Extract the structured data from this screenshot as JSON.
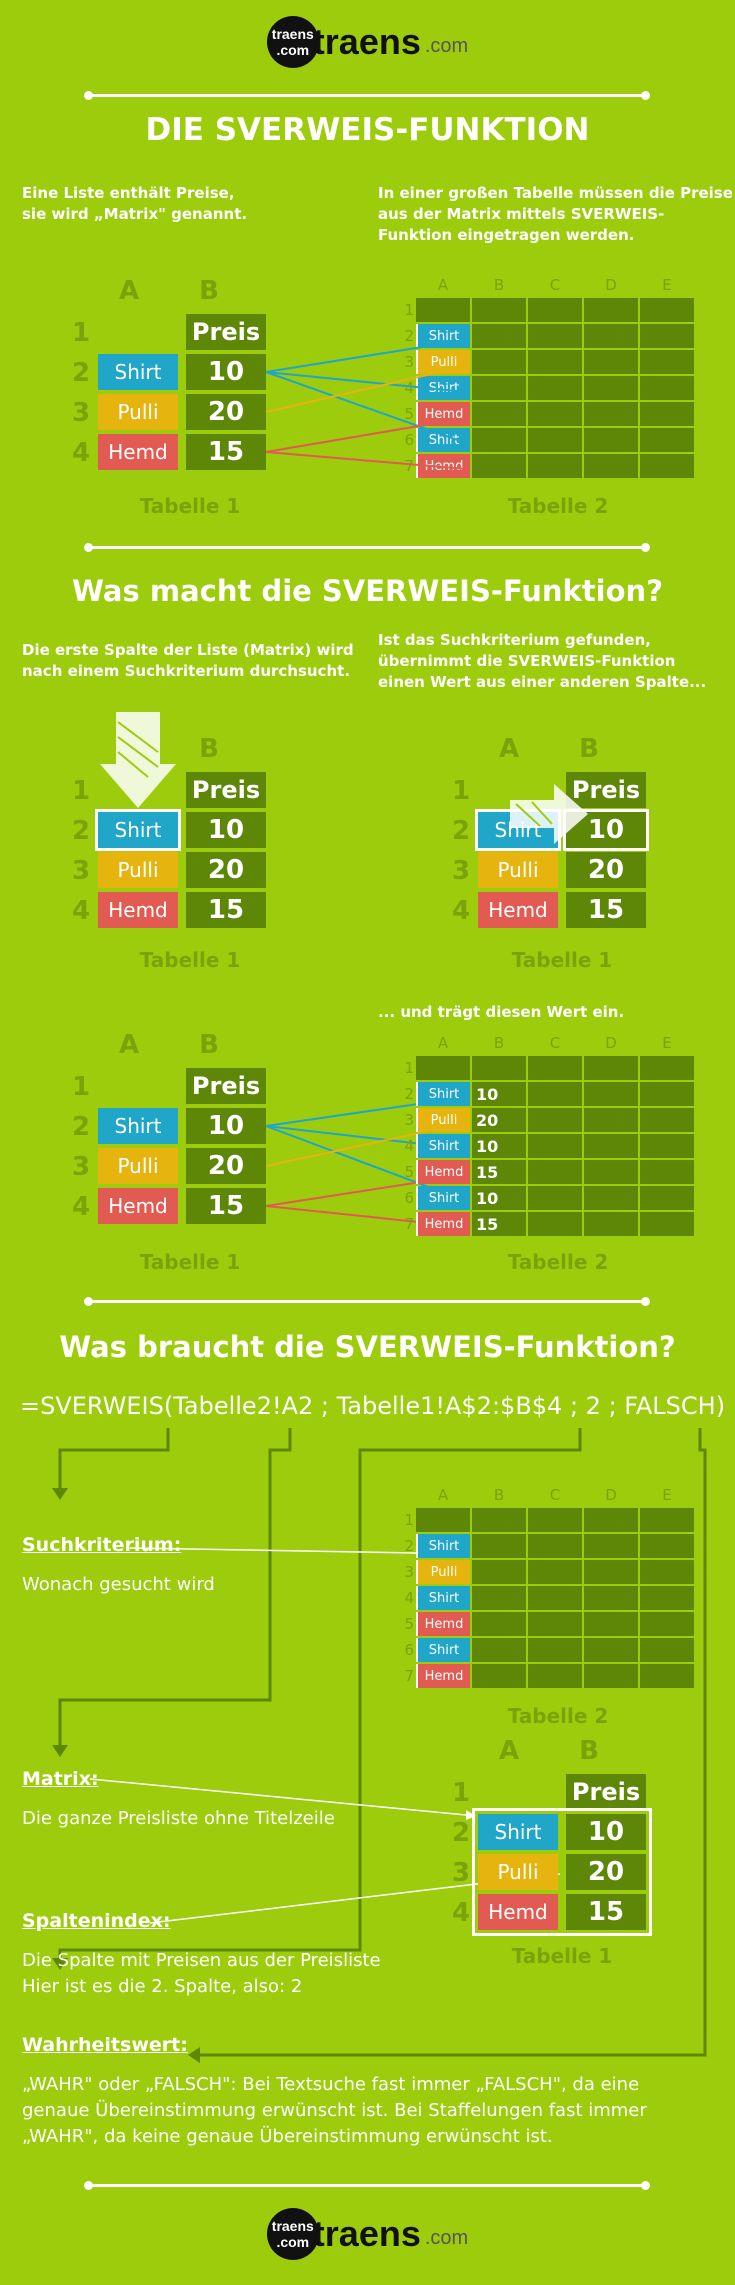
{
  "logo": {
    "badge_top": "traens",
    "badge_bottom": ".com",
    "word": "traens",
    "dotcom": ".com"
  },
  "section1": {
    "title": "DIE SVERWEIS-FUNKTION",
    "left_text": [
      "Eine Liste enthält Preise,",
      "sie wird „Matrix\" genannt."
    ],
    "right_text": [
      "In einer großen Tabelle müssen die Preise",
      "aus der Matrix mittels SVERWEIS-",
      "Funktion eingetragen werden."
    ]
  },
  "section2": {
    "title": "Was macht die SVERWEIS-Funktion?",
    "left_text": [
      "Die erste Spalte der Liste (Matrix) wird",
      "nach einem Suchkriterium durchsucht."
    ],
    "right_text": [
      "Ist das Suchkriterium gefunden,",
      "übernimmt die SVERWEIS-Funktion",
      "einen Wert aus einer anderen Spalte..."
    ],
    "right_text2": "... und trägt diesen Wert ein."
  },
  "section3": {
    "title": "Was braucht die SVERWEIS-Funktion?",
    "formula": "=SVERWEIS(Tabelle2!A2 ; Tabelle1!A$2:$B$4 ; 2 ; FALSCH)",
    "items": [
      {
        "label": "Suchkriterium:",
        "text": [
          "Wonach gesucht wird"
        ]
      },
      {
        "label": "Matrix:",
        "text": [
          "Die ganze Preisliste ohne Titelzeile"
        ]
      },
      {
        "label": "Spaltenindex:",
        "text": [
          "Die Spalte mit Preisen aus der Preisliste",
          "Hier ist es die 2. Spalte, also: 2"
        ]
      },
      {
        "label": "Wahrheitswert:",
        "text": [
          "„WAHR\" oder „FALSCH\": Bei Textsuche fast immer „FALSCH\", da eine",
          "genaue Übereinstimmung erwünscht ist. Bei Staffelungen fast immer",
          "„WAHR\", da keine genaue Übereinstimmung erwünscht ist."
        ]
      }
    ]
  },
  "table1": {
    "caption": "Tabelle 1",
    "col_a": "A",
    "col_b": "B",
    "row_numbers": [
      "1",
      "2",
      "3",
      "4"
    ],
    "header": "Preis",
    "items": [
      "Shirt",
      "Pulli",
      "Hemd"
    ],
    "prices": [
      "10",
      "20",
      "15"
    ]
  },
  "table2": {
    "caption": "Tabelle 2",
    "cols": [
      "A",
      "B",
      "C",
      "D",
      "E"
    ],
    "rows": [
      "1",
      "2",
      "3",
      "4",
      "5",
      "6",
      "7"
    ],
    "items": [
      "Shirt",
      "Pulli",
      "Shirt",
      "Hemd",
      "Shirt",
      "Hemd"
    ],
    "values": [
      "10",
      "20",
      "10",
      "15",
      "10",
      "15"
    ]
  },
  "colors": {
    "background": "#9ccc0c",
    "cell": "#5f8707",
    "shirt": "#1fa6c9",
    "pulli": "#e5b40f",
    "hemd": "#e15b52"
  }
}
